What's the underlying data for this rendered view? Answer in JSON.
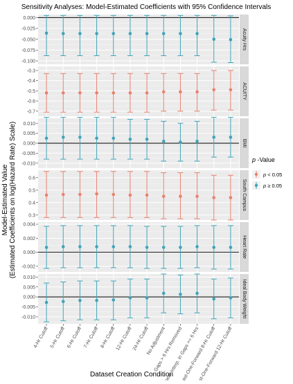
{
  "chart_data": {
    "type": "scatter",
    "title": "Sensitivity Analyses: Model-Estimated Coefficients with 95% Confidence Intervals",
    "xlabel": "Dataset Creation Condition",
    "ylabel": "Model-Estimated Value",
    "ylabel_sub": "(Estimated Coefficients on log(Hazard Rate) Scale)",
    "categories": [
      "4-Hr Cutoff",
      "5-Hr Cutoff",
      "6-Hr Cutoff",
      "7-Hr Cutoff",
      "8-Hr Cutoff",
      "12-Hr Cutoff",
      "24-Hr Cutoff",
      "No Adjustment",
      "Gaps > 6 Hrs Removed",
      "Linear Interp. in Gaps >= 6 Hrs",
      "Last-One-Forward 8-Hr Cutoff",
      "Last-One-Forward 12-Hr Cutoff"
    ],
    "legend": {
      "title_italic": "p",
      "title_rest": " -Value",
      "placement": "right",
      "entries": [
        {
          "p_part": "p",
          "rest": " < 0.05",
          "color": "#E8806E",
          "key": "sig"
        },
        {
          "p_part": "p",
          "rest": " ≥ 0.05",
          "color": "#3FA3B8",
          "key": "ns"
        }
      ]
    },
    "colors": {
      "sig": "#E8806E",
      "ns": "#3FA3B8"
    },
    "panels": [
      {
        "strip": "Acuity Hrs",
        "ylim": [
          -0.108,
          0.007
        ],
        "ticks": [
          0.0,
          -0.025,
          -0.05,
          -0.075,
          -0.1
        ],
        "tick_labels": [
          "0.000",
          "-0.025",
          "-0.050",
          "-0.075",
          "-0.100"
        ],
        "significance": "ns",
        "points": [
          {
            "est": -0.036,
            "lo": -0.088,
            "hi": 0.005
          },
          {
            "est": -0.037,
            "lo": -0.088,
            "hi": 0.005
          },
          {
            "est": -0.037,
            "lo": -0.088,
            "hi": 0.005
          },
          {
            "est": -0.037,
            "lo": -0.088,
            "hi": 0.005
          },
          {
            "est": -0.037,
            "lo": -0.088,
            "hi": 0.005
          },
          {
            "est": -0.037,
            "lo": -0.088,
            "hi": 0.005
          },
          {
            "est": -0.037,
            "lo": -0.088,
            "hi": 0.005
          },
          {
            "est": -0.037,
            "lo": -0.088,
            "hi": 0.005
          },
          {
            "est": -0.037,
            "lo": -0.088,
            "hi": 0.005
          },
          {
            "est": -0.037,
            "lo": -0.088,
            "hi": 0.005
          },
          {
            "est": -0.05,
            "lo": -0.103,
            "hi": 0.005
          },
          {
            "est": -0.051,
            "lo": -0.104,
            "hi": 0.004
          }
        ]
      },
      {
        "strip": "ACUITY",
        "ylim": [
          -0.75,
          -0.26
        ],
        "ticks": [
          -0.3,
          -0.4,
          -0.5,
          -0.6,
          -0.7
        ],
        "tick_labels": [
          "-0.3",
          "-0.4",
          "-0.5",
          "-0.6",
          "-0.7"
        ],
        "significance": "sig",
        "points": [
          {
            "est": -0.52,
            "lo": -0.71,
            "hi": -0.33
          },
          {
            "est": -0.52,
            "lo": -0.71,
            "hi": -0.33
          },
          {
            "est": -0.52,
            "lo": -0.71,
            "hi": -0.33
          },
          {
            "est": -0.52,
            "lo": -0.71,
            "hi": -0.33
          },
          {
            "est": -0.52,
            "lo": -0.71,
            "hi": -0.33
          },
          {
            "est": -0.52,
            "lo": -0.71,
            "hi": -0.33
          },
          {
            "est": -0.52,
            "lo": -0.71,
            "hi": -0.33
          },
          {
            "est": -0.51,
            "lo": -0.7,
            "hi": -0.33
          },
          {
            "est": -0.51,
            "lo": -0.7,
            "hi": -0.33
          },
          {
            "est": -0.51,
            "lo": -0.7,
            "hi": -0.33
          },
          {
            "est": -0.49,
            "lo": -0.69,
            "hi": -0.3
          },
          {
            "est": -0.49,
            "lo": -0.69,
            "hi": -0.3
          }
        ]
      },
      {
        "strip": "BMI",
        "ylim": [
          -0.0125,
          0.0125
        ],
        "ticks": [
          0.01,
          0.005,
          0.0,
          -0.005,
          -0.01
        ],
        "tick_labels": [
          "0.010",
          "0.005",
          "0.000",
          "-0.005",
          "-0.010"
        ],
        "significance": "ns",
        "points": [
          {
            "est": 0.0025,
            "lo": -0.008,
            "hi": 0.013
          },
          {
            "est": 0.003,
            "lo": -0.008,
            "hi": 0.013
          },
          {
            "est": 0.003,
            "lo": -0.008,
            "hi": 0.013
          },
          {
            "est": 0.0025,
            "lo": -0.008,
            "hi": 0.013
          },
          {
            "est": 0.0025,
            "lo": -0.008,
            "hi": 0.013
          },
          {
            "est": 0.002,
            "lo": -0.008,
            "hi": 0.012
          },
          {
            "est": 0.002,
            "lo": -0.008,
            "hi": 0.012
          },
          {
            "est": 0.001,
            "lo": -0.009,
            "hi": 0.011
          },
          {
            "est": 0.0005,
            "lo": -0.009,
            "hi": 0.01
          },
          {
            "est": 0.001,
            "lo": -0.009,
            "hi": 0.011
          },
          {
            "est": 0.003,
            "lo": -0.007,
            "hi": 0.013
          },
          {
            "est": 0.003,
            "lo": -0.007,
            "hi": 0.013
          }
        ]
      },
      {
        "strip": "South Campus",
        "ylim": [
          0.26,
          0.66
        ],
        "ticks": [
          0.6,
          0.5,
          0.4,
          0.3
        ],
        "tick_labels": [
          "0.6",
          "0.5",
          "0.4",
          "0.3"
        ],
        "significance": "sig",
        "points": [
          {
            "est": 0.46,
            "lo": 0.28,
            "hi": 0.65
          },
          {
            "est": 0.465,
            "lo": 0.28,
            "hi": 0.65
          },
          {
            "est": 0.465,
            "lo": 0.28,
            "hi": 0.65
          },
          {
            "est": 0.47,
            "lo": 0.28,
            "hi": 0.65
          },
          {
            "est": 0.465,
            "lo": 0.28,
            "hi": 0.65
          },
          {
            "est": 0.46,
            "lo": 0.28,
            "hi": 0.65
          },
          {
            "est": 0.46,
            "lo": 0.28,
            "hi": 0.65
          },
          {
            "est": 0.45,
            "lo": 0.27,
            "hi": 0.64
          },
          {
            "est": 0.45,
            "lo": 0.27,
            "hi": 0.64
          },
          {
            "est": 0.45,
            "lo": 0.27,
            "hi": 0.64
          },
          {
            "est": 0.44,
            "lo": 0.26,
            "hi": 0.62
          },
          {
            "est": 0.44,
            "lo": 0.26,
            "hi": 0.62
          }
        ]
      },
      {
        "strip": "Heart Rate",
        "ylim": [
          -0.0028,
          0.0043
        ],
        "ticks": [
          0.004,
          0.002,
          0.0,
          -0.002
        ],
        "tick_labels": [
          "0.004",
          "0.002",
          "0.000",
          "-0.002"
        ],
        "significance": "ns",
        "points": [
          {
            "est": 0.0007,
            "lo": -0.0023,
            "hi": 0.0037
          },
          {
            "est": 0.0008,
            "lo": -0.0022,
            "hi": 0.0038
          },
          {
            "est": 0.0008,
            "lo": -0.0022,
            "hi": 0.0038
          },
          {
            "est": 0.0008,
            "lo": -0.0022,
            "hi": 0.0038
          },
          {
            "est": 0.0008,
            "lo": -0.0022,
            "hi": 0.0038
          },
          {
            "est": 0.0008,
            "lo": -0.0022,
            "hi": 0.0038
          },
          {
            "est": 0.0007,
            "lo": -0.0023,
            "hi": 0.0037
          },
          {
            "est": 0.0007,
            "lo": -0.0023,
            "hi": 0.0037
          },
          {
            "est": 0.0007,
            "lo": -0.0023,
            "hi": 0.0037
          },
          {
            "est": 0.0008,
            "lo": -0.0022,
            "hi": 0.0038
          },
          {
            "est": 0.0007,
            "lo": -0.0024,
            "hi": 0.0038
          },
          {
            "est": 0.0007,
            "lo": -0.0024,
            "hi": 0.0038
          }
        ]
      },
      {
        "strip": "Ideal Body Weight",
        "ylim": [
          -0.0135,
          0.0115
        ],
        "ticks": [
          0.01,
          0.005,
          0.0,
          -0.005,
          -0.01
        ],
        "tick_labels": [
          "0.010",
          "0.005",
          "0.000",
          "-0.005",
          "-0.010"
        ],
        "significance": "ns",
        "points": [
          {
            "est": -0.0028,
            "lo": -0.0125,
            "hi": 0.007
          },
          {
            "est": -0.0023,
            "lo": -0.012,
            "hi": 0.0075
          },
          {
            "est": -0.0018,
            "lo": -0.0115,
            "hi": 0.008
          },
          {
            "est": -0.0018,
            "lo": -0.0115,
            "hi": 0.008
          },
          {
            "est": -0.0015,
            "lo": -0.0115,
            "hi": 0.008
          },
          {
            "est": -0.0005,
            "lo": -0.0105,
            "hi": 0.009
          },
          {
            "est": -0.0005,
            "lo": -0.0105,
            "hi": 0.009
          },
          {
            "est": 0.0018,
            "lo": -0.008,
            "hi": 0.0115
          },
          {
            "est": 0.0013,
            "lo": -0.0085,
            "hi": 0.011
          },
          {
            "est": 0.0018,
            "lo": -0.008,
            "hi": 0.0115
          },
          {
            "est": -0.001,
            "lo": -0.011,
            "hi": 0.009
          },
          {
            "est": -0.0005,
            "lo": -0.0105,
            "hi": 0.0095
          }
        ]
      }
    ]
  }
}
